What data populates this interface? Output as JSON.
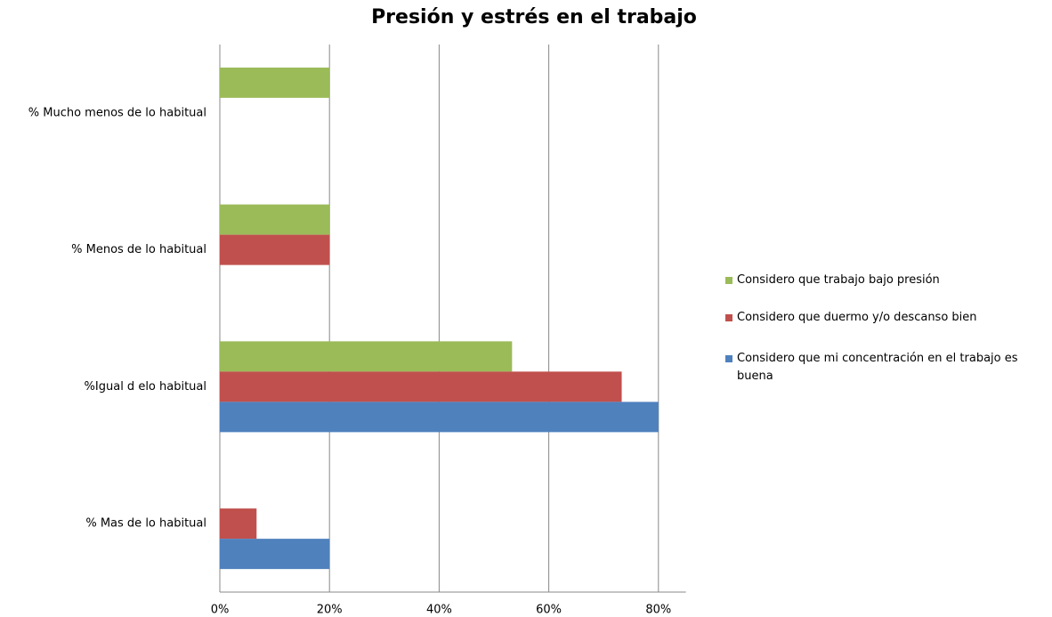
{
  "chart_data": {
    "type": "hbar",
    "title": "Presión y estrés en el trabajo",
    "categories": [
      "% Mucho menos de lo habitual",
      "% Menos de lo habitual",
      "%Igual d elo habitual",
      "% Mas de lo habitual"
    ],
    "series": [
      {
        "name": "Considero que trabajo bajo presión",
        "color": "#9bbb59",
        "values": [
          20,
          20,
          53.3,
          0
        ]
      },
      {
        "name": "Considero que duermo y/o descanso bien",
        "color": "#c0504d",
        "values": [
          0,
          20,
          73.3,
          6.7
        ]
      },
      {
        "name": "Considero que mi concentración en el trabajo es buena",
        "color": "#4f81bd",
        "values": [
          0,
          0,
          80,
          20
        ]
      }
    ],
    "xlim": [
      0,
      85
    ],
    "xticks": [
      {
        "value": 0,
        "label": "0%"
      },
      {
        "value": 20,
        "label": "20%"
      },
      {
        "value": 40,
        "label": "40%"
      },
      {
        "value": 60,
        "label": "60%"
      },
      {
        "value": 80,
        "label": "80%"
      }
    ],
    "grid": true,
    "legend": "right"
  }
}
